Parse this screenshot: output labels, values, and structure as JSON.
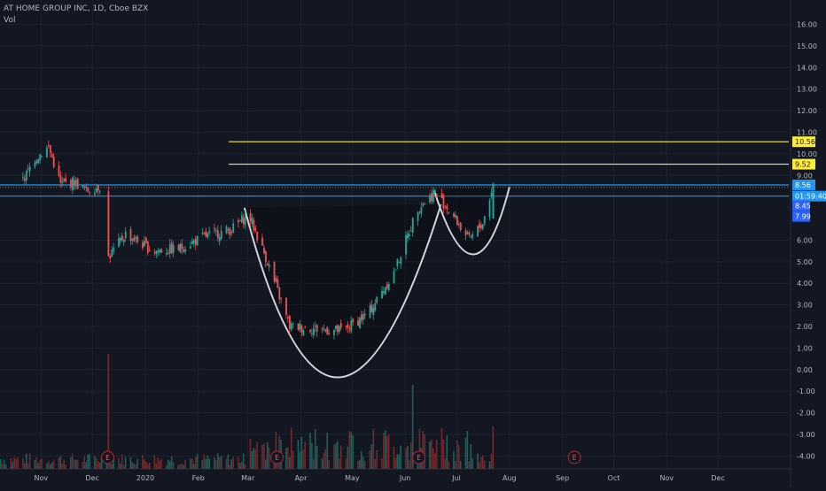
{
  "chart_data": {
    "type": "candlestick",
    "symbol_title": "AT HOME GROUP INC, 1D, Cboe BZX",
    "volume_label": "Vol",
    "ylim": [
      -4.6,
      16.8
    ],
    "y_ticks": [
      "16.00",
      "15.00",
      "14.00",
      "13.00",
      "12.00",
      "11.00",
      "10.00",
      "9.00",
      "6.00",
      "5.00",
      "4.00",
      "3.00",
      "2.00",
      "1.00",
      "0.00",
      "-1.00",
      "-2.00",
      "-3.00",
      "-4.00"
    ],
    "x_ticks": [
      "Nov",
      "Dec",
      "2020",
      "Feb",
      "Mar",
      "Apr",
      "May",
      "Jun",
      "Jul",
      "Aug",
      "Sep",
      "Oct",
      "Nov",
      "Dec"
    ],
    "horizontal_levels": [
      {
        "label": "10.56",
        "value": 10.56,
        "color": "#ffeb3b",
        "text_color": "#131722"
      },
      {
        "label": "9.52",
        "value": 9.52,
        "color": "#ffeb3b",
        "text_color": "#131722"
      },
      {
        "label": "8.56",
        "value": 8.56,
        "color": "#2196f3",
        "text_color": "#ffffff"
      },
      {
        "label": "01:59:40",
        "value": 8.04,
        "color": "#2196f3",
        "text_color": "#ffffff"
      }
    ],
    "price_markers": [
      {
        "label": "8.45",
        "value": 7.6,
        "color": "#2962ff"
      },
      {
        "label": "7.99",
        "value": 7.1,
        "color": "#2962ff"
      }
    ],
    "earnings_labels": [
      "E",
      "E",
      "E",
      "E"
    ],
    "price_path": [
      [
        "2019-10-20",
        8.6
      ],
      [
        "2019-10-28",
        9.8
      ],
      [
        "2019-11-05",
        10.3
      ],
      [
        "2019-11-12",
        8.6
      ],
      [
        "2019-11-20",
        8.7
      ],
      [
        "2019-11-27",
        8.3
      ],
      [
        "2019-12-05",
        8.5
      ],
      [
        "2019-12-10",
        5.2
      ],
      [
        "2019-12-20",
        6.3
      ],
      [
        "2020-01-05",
        5.5
      ],
      [
        "2020-01-20",
        5.6
      ],
      [
        "2020-02-05",
        6.2
      ],
      [
        "2020-02-20",
        6.5
      ],
      [
        "2020-03-01",
        7.2
      ],
      [
        "2020-03-12",
        5.0
      ],
      [
        "2020-03-25",
        2.0
      ],
      [
        "2020-04-08",
        1.9
      ],
      [
        "2020-04-25",
        1.8
      ],
      [
        "2020-05-10",
        2.6
      ],
      [
        "2020-05-25",
        4.5
      ],
      [
        "2020-06-08",
        7.5
      ],
      [
        "2020-06-18",
        8.2
      ],
      [
        "2020-06-28",
        7.2
      ],
      [
        "2020-07-08",
        6.0
      ],
      [
        "2020-07-16",
        6.8
      ],
      [
        "2020-07-22",
        8.56
      ]
    ],
    "cup_curves": [
      {
        "from": "2020-02-28",
        "bottom": "2020-04-20",
        "to": "2020-06-22",
        "top_value": 7.5,
        "bottom_value": -0.4
      },
      {
        "from": "2020-06-18",
        "bottom": "2020-07-12",
        "to": "2020-08-01",
        "top_value": 8.3,
        "bottom_value": 5.3
      }
    ]
  }
}
